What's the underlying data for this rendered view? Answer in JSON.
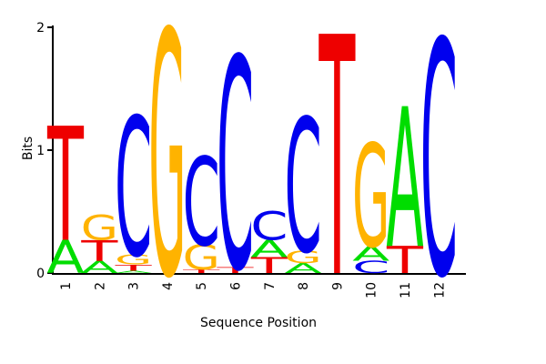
{
  "chart_data": {
    "type": "logo",
    "xlabel": "Sequence Position",
    "ylabel": "Bits",
    "categories": [
      "1",
      "2",
      "3",
      "4",
      "5",
      "6",
      "7",
      "8",
      "9",
      "10",
      "11",
      "12"
    ],
    "ylim": [
      0,
      2
    ],
    "yticks": [
      0,
      1,
      2
    ],
    "colors": {
      "A": "#00dd00",
      "C": "#0000ee",
      "G": "#ffb300",
      "T": "#ee0000"
    },
    "stacks": [
      {
        "letters": [
          "A",
          "T"
        ],
        "values": [
          0.27,
          0.93
        ]
      },
      {
        "letters": [
          "A",
          "T",
          "G"
        ],
        "values": [
          0.1,
          0.17,
          0.2
        ]
      },
      {
        "letters": [
          "A",
          "T",
          "G",
          "C"
        ],
        "values": [
          0.02,
          0.05,
          0.08,
          1.13
        ]
      },
      {
        "letters": [
          "G"
        ],
        "values": [
          1.99
        ]
      },
      {
        "letters": [
          "T",
          "G",
          "C"
        ],
        "values": [
          0.03,
          0.2,
          0.72
        ]
      },
      {
        "letters": [
          "T",
          "C"
        ],
        "values": [
          0.05,
          1.72
        ]
      },
      {
        "letters": [
          "T",
          "A",
          "C"
        ],
        "values": [
          0.13,
          0.14,
          0.23
        ]
      },
      {
        "letters": [
          "A",
          "G",
          "C"
        ],
        "values": [
          0.08,
          0.1,
          1.09
        ]
      },
      {
        "letters": [
          "T"
        ],
        "values": [
          1.95
        ]
      },
      {
        "letters": [
          "C",
          "A",
          "G"
        ],
        "values": [
          0.1,
          0.12,
          0.84
        ]
      },
      {
        "letters": [
          "T",
          "A"
        ],
        "values": [
          0.22,
          1.14
        ]
      },
      {
        "letters": [
          "C"
        ],
        "values": [
          1.91
        ]
      }
    ]
  }
}
